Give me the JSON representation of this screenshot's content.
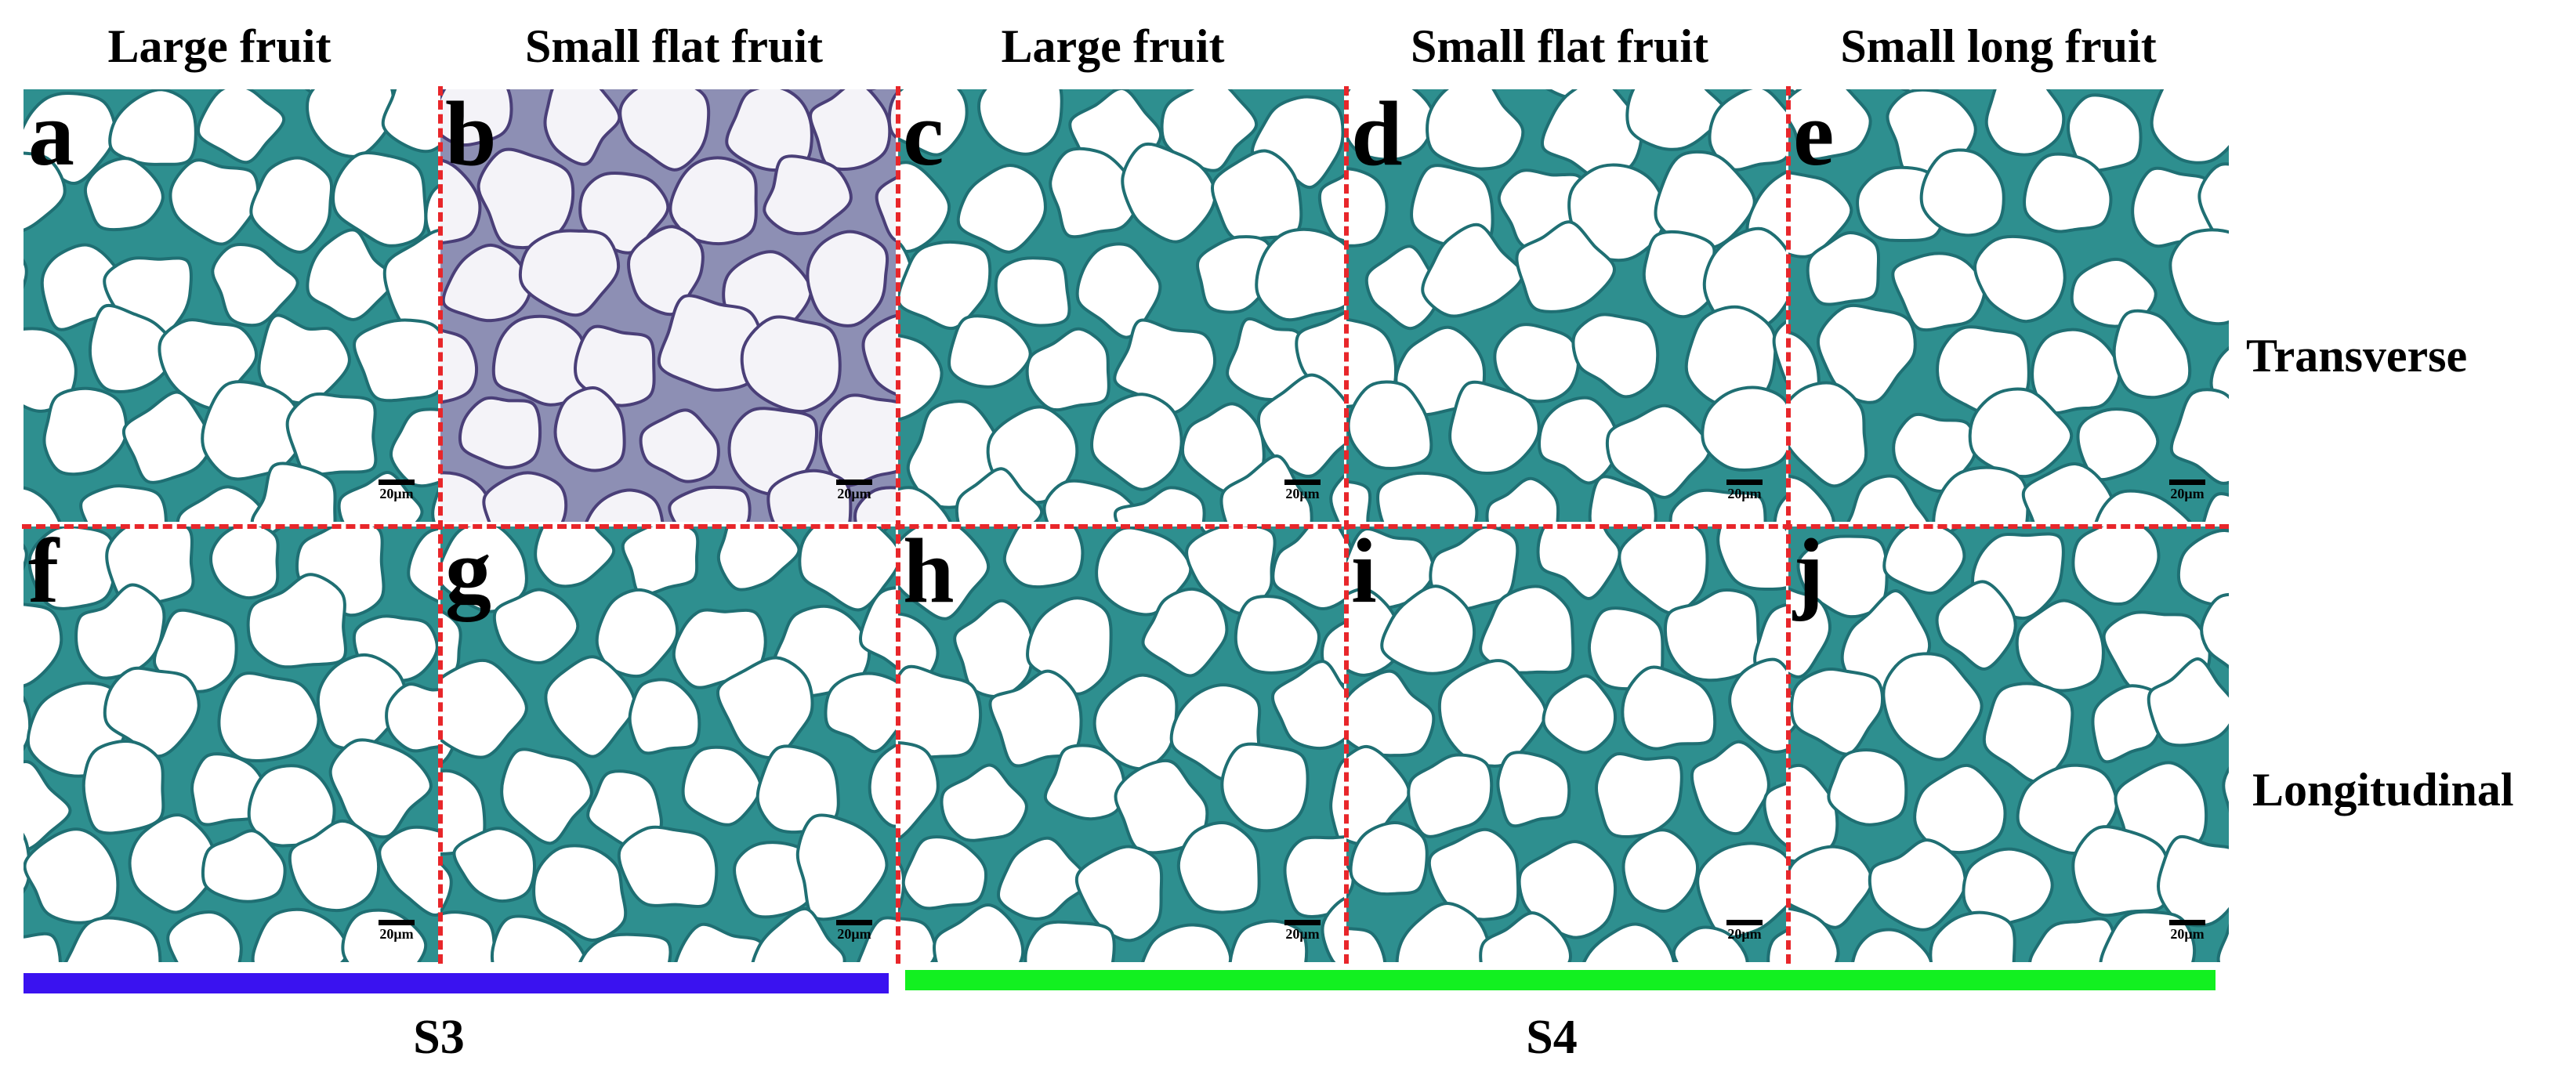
{
  "column_titles": [
    "Large fruit",
    "Small flat fruit",
    "Large fruit",
    "Small flat fruit",
    "Small long fruit"
  ],
  "row_titles": {
    "top": "Transverse",
    "bottom": "Longitudinal"
  },
  "panels": {
    "a": "a",
    "b": "b",
    "c": "c",
    "d": "d",
    "e": "e",
    "f": "f",
    "g": "g",
    "h": "h",
    "i": "i",
    "j": "j"
  },
  "scale_label": "20μm",
  "stages": {
    "s3": "S3",
    "s4": "S4"
  },
  "colors": {
    "cell_wall": "#2e8f8f",
    "cell_wall_dark": "#1f6f73",
    "cell_lumen": "#ffffff",
    "divider": "#e8262a",
    "s3_bar": "#3a12f0",
    "s4_bar": "#12f020"
  }
}
